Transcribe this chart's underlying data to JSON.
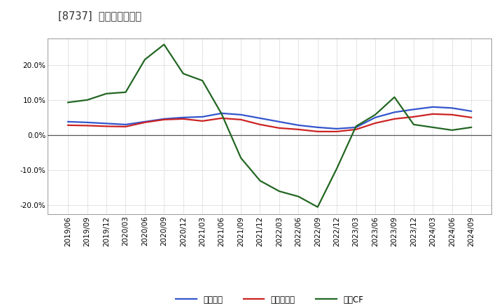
{
  "title": "[8737]  マージンの推移",
  "background_color": "#ffffff",
  "plot_bg_color": "#ffffff",
  "grid_color": "#999999",
  "ylim": [
    -0.225,
    0.275
  ],
  "yticks": [
    -0.2,
    -0.1,
    0.0,
    0.1,
    0.2
  ],
  "legend_labels": [
    "経常利益",
    "当期純利益",
    "営業CF"
  ],
  "line_colors": [
    "#3355cc",
    "#cc2222",
    "#226622"
  ],
  "dates": [
    "2019/06",
    "2019/09",
    "2019/12",
    "2020/03",
    "2020/06",
    "2020/09",
    "2020/12",
    "2021/03",
    "2021/06",
    "2021/09",
    "2021/12",
    "2022/03",
    "2022/06",
    "2022/09",
    "2022/12",
    "2023/03",
    "2023/06",
    "2023/09",
    "2023/12",
    "2024/03",
    "2024/06",
    "2024/09"
  ],
  "operating_profit_margin": [
    0.038,
    0.036,
    0.033,
    0.03,
    0.038,
    0.046,
    0.05,
    0.052,
    0.062,
    0.058,
    0.048,
    0.038,
    0.028,
    0.022,
    0.018,
    0.022,
    0.05,
    0.065,
    0.073,
    0.08,
    0.077,
    0.068
  ],
  "net_profit_margin": [
    0.028,
    0.027,
    0.025,
    0.024,
    0.036,
    0.044,
    0.046,
    0.04,
    0.048,
    0.044,
    0.03,
    0.02,
    0.016,
    0.01,
    0.01,
    0.016,
    0.034,
    0.046,
    0.052,
    0.06,
    0.058,
    0.05
  ],
  "operating_cf_margin": [
    0.093,
    0.1,
    0.118,
    0.122,
    0.215,
    0.258,
    0.175,
    0.155,
    0.06,
    -0.065,
    -0.13,
    -0.16,
    -0.175,
    -0.205,
    -0.095,
    0.025,
    0.058,
    0.108,
    0.03,
    0.022,
    0.014,
    0.022
  ]
}
